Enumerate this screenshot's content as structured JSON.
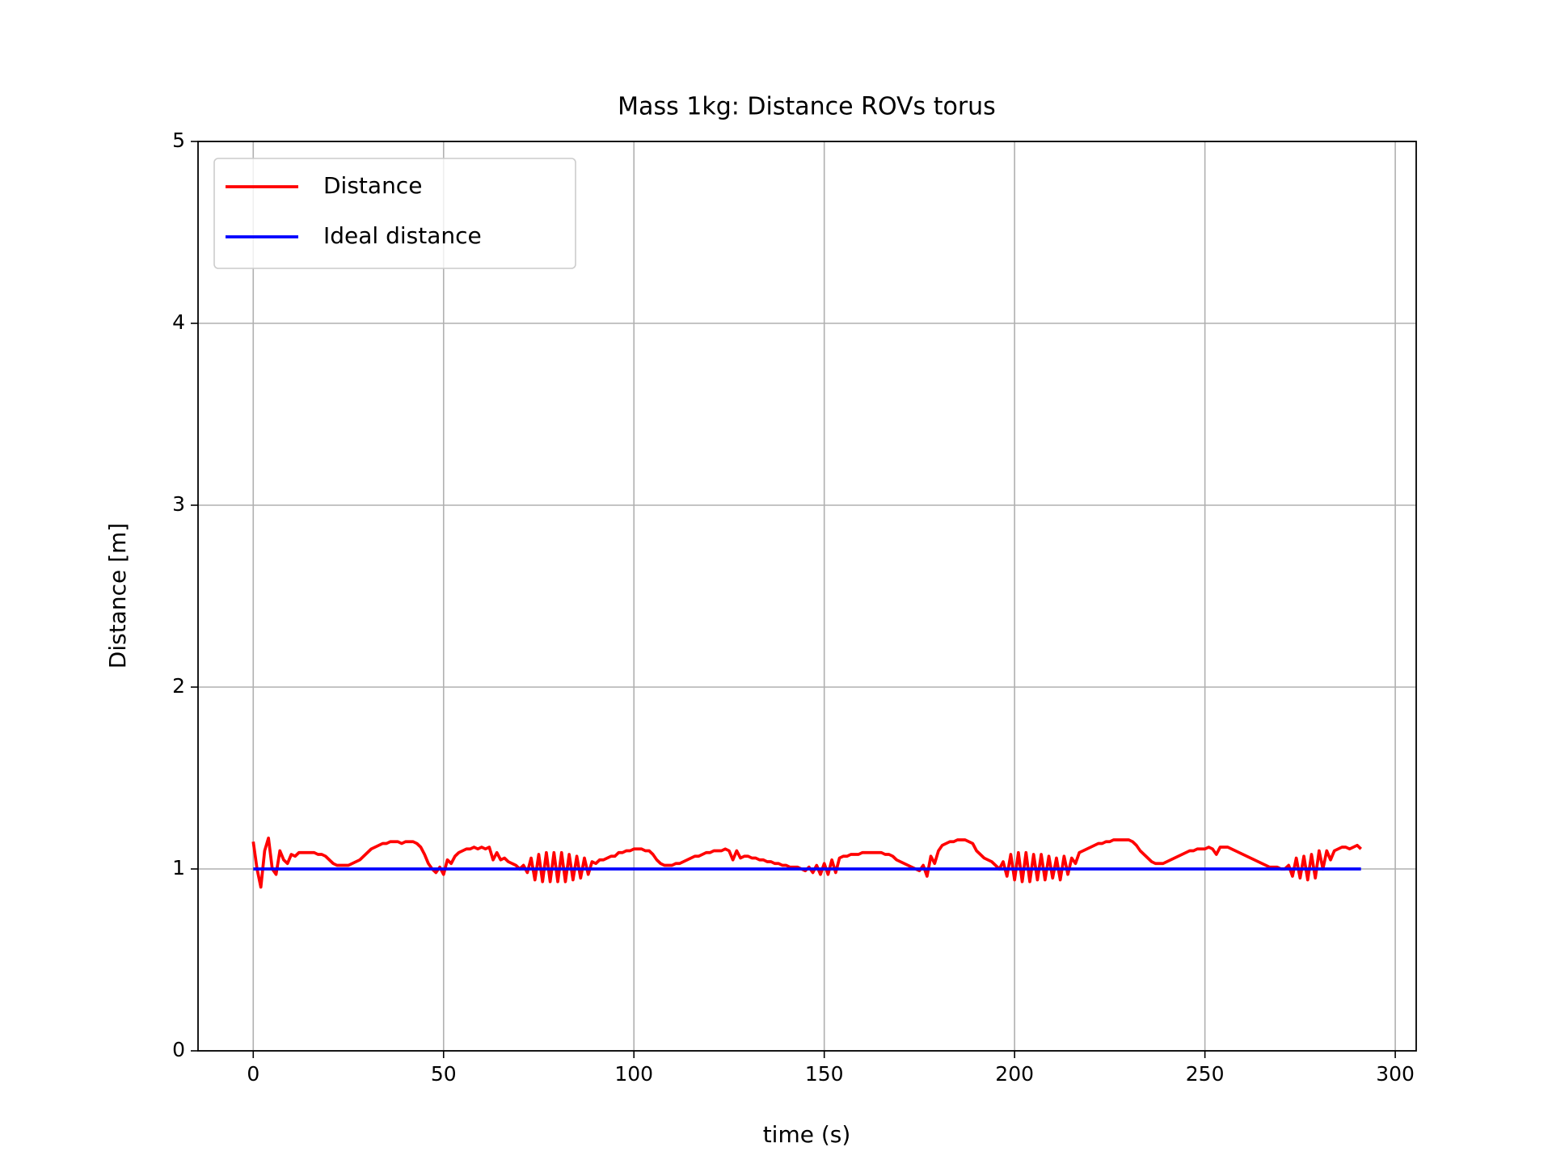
{
  "chart_data": {
    "type": "line",
    "title": "Mass 1kg: Distance ROVs torus",
    "xlabel": "time (s)",
    "ylabel": "Distance [m]",
    "xlim": [
      -14.5,
      305.5
    ],
    "ylim": [
      0,
      5
    ],
    "xticks": [
      0,
      50,
      100,
      150,
      200,
      250,
      300
    ],
    "yticks": [
      0,
      1,
      2,
      3,
      4,
      5
    ],
    "grid": true,
    "legend": "upper left",
    "series": [
      {
        "name": "Distance",
        "color": "#ff0000",
        "x": [
          0,
          1,
          2,
          3,
          4,
          5,
          6,
          7,
          8,
          9,
          10,
          11,
          12,
          13,
          14,
          15,
          16,
          17,
          18,
          19,
          20,
          21,
          22,
          23,
          24,
          25,
          26,
          27,
          28,
          29,
          30,
          31,
          32,
          33,
          34,
          35,
          36,
          37,
          38,
          39,
          40,
          41,
          42,
          43,
          44,
          45,
          46,
          47,
          48,
          49,
          50,
          51,
          52,
          53,
          54,
          55,
          56,
          57,
          58,
          59,
          60,
          61,
          62,
          63,
          64,
          65,
          66,
          67,
          68,
          69,
          70,
          71,
          72,
          73,
          74,
          75,
          76,
          77,
          78,
          79,
          80,
          81,
          82,
          83,
          84,
          85,
          86,
          87,
          88,
          89,
          90,
          91,
          92,
          93,
          94,
          95,
          96,
          97,
          98,
          99,
          100,
          101,
          102,
          103,
          104,
          105,
          106,
          107,
          108,
          109,
          110,
          111,
          112,
          113,
          114,
          115,
          116,
          117,
          118,
          119,
          120,
          121,
          122,
          123,
          124,
          125,
          126,
          127,
          128,
          129,
          130,
          131,
          132,
          133,
          134,
          135,
          136,
          137,
          138,
          139,
          140,
          141,
          142,
          143,
          144,
          145,
          146,
          147,
          148,
          149,
          150,
          151,
          152,
          153,
          154,
          155,
          156,
          157,
          158,
          159,
          160,
          161,
          162,
          163,
          164,
          165,
          166,
          167,
          168,
          169,
          170,
          171,
          172,
          173,
          174,
          175,
          176,
          177,
          178,
          179,
          180,
          181,
          182,
          183,
          184,
          185,
          186,
          187,
          188,
          189,
          190,
          191,
          192,
          193,
          194,
          195,
          196,
          197,
          198,
          199,
          200,
          201,
          202,
          203,
          204,
          205,
          206,
          207,
          208,
          209,
          210,
          211,
          212,
          213,
          214,
          215,
          216,
          217,
          218,
          219,
          220,
          221,
          222,
          223,
          224,
          225,
          226,
          227,
          228,
          229,
          230,
          231,
          232,
          233,
          234,
          235,
          236,
          237,
          238,
          239,
          240,
          241,
          242,
          243,
          244,
          245,
          246,
          247,
          248,
          249,
          250,
          251,
          252,
          253,
          254,
          255,
          256,
          257,
          258,
          259,
          260,
          261,
          262,
          263,
          264,
          265,
          266,
          267,
          268,
          269,
          270,
          271,
          272,
          273,
          274,
          275,
          276,
          277,
          278,
          279,
          280,
          281,
          282,
          283,
          284,
          285,
          286,
          287,
          288,
          289,
          290,
          291
        ],
        "values": [
          1.15,
          1.0,
          0.9,
          1.1,
          1.17,
          1.0,
          0.97,
          1.1,
          1.05,
          1.03,
          1.08,
          1.07,
          1.09,
          1.09,
          1.09,
          1.09,
          1.09,
          1.08,
          1.08,
          1.07,
          1.05,
          1.03,
          1.02,
          1.02,
          1.02,
          1.02,
          1.03,
          1.04,
          1.05,
          1.07,
          1.09,
          1.11,
          1.12,
          1.13,
          1.14,
          1.14,
          1.15,
          1.15,
          1.15,
          1.14,
          1.15,
          1.15,
          1.15,
          1.14,
          1.12,
          1.08,
          1.03,
          1.0,
          0.98,
          1.01,
          0.97,
          1.05,
          1.03,
          1.07,
          1.09,
          1.1,
          1.11,
          1.11,
          1.12,
          1.11,
          1.12,
          1.11,
          1.12,
          1.05,
          1.09,
          1.05,
          1.06,
          1.04,
          1.03,
          1.02,
          1.0,
          1.02,
          0.98,
          1.06,
          0.94,
          1.08,
          0.93,
          1.09,
          0.93,
          1.09,
          0.93,
          1.09,
          0.93,
          1.08,
          0.94,
          1.07,
          0.95,
          1.06,
          0.97,
          1.04,
          1.03,
          1.05,
          1.05,
          1.06,
          1.07,
          1.07,
          1.09,
          1.09,
          1.1,
          1.1,
          1.11,
          1.11,
          1.11,
          1.1,
          1.1,
          1.08,
          1.05,
          1.03,
          1.02,
          1.02,
          1.02,
          1.03,
          1.03,
          1.04,
          1.05,
          1.06,
          1.07,
          1.07,
          1.08,
          1.09,
          1.09,
          1.1,
          1.1,
          1.1,
          1.11,
          1.1,
          1.05,
          1.1,
          1.06,
          1.07,
          1.07,
          1.06,
          1.06,
          1.05,
          1.05,
          1.04,
          1.04,
          1.03,
          1.03,
          1.02,
          1.02,
          1.01,
          1.01,
          1.01,
          1.0,
          0.99,
          1.01,
          0.98,
          1.02,
          0.97,
          1.03,
          0.97,
          1.05,
          0.98,
          1.06,
          1.07,
          1.07,
          1.08,
          1.08,
          1.08,
          1.09,
          1.09,
          1.09,
          1.09,
          1.09,
          1.09,
          1.08,
          1.08,
          1.07,
          1.05,
          1.04,
          1.03,
          1.02,
          1.01,
          1.0,
          0.99,
          1.02,
          0.96,
          1.07,
          1.03,
          1.1,
          1.13,
          1.14,
          1.15,
          1.15,
          1.16,
          1.16,
          1.16,
          1.15,
          1.14,
          1.1,
          1.08,
          1.06,
          1.05,
          1.04,
          1.02,
          1.0,
          1.04,
          0.96,
          1.08,
          0.94,
          1.09,
          0.93,
          1.09,
          0.93,
          1.08,
          0.94,
          1.08,
          0.94,
          1.07,
          0.95,
          1.06,
          0.94,
          1.07,
          0.97,
          1.06,
          1.03,
          1.09,
          1.1,
          1.11,
          1.12,
          1.13,
          1.14,
          1.14,
          1.15,
          1.15,
          1.16,
          1.16,
          1.16,
          1.16,
          1.16,
          1.15,
          1.13,
          1.1,
          1.08,
          1.06,
          1.04,
          1.03,
          1.03,
          1.03,
          1.04,
          1.05,
          1.06,
          1.07,
          1.08,
          1.09,
          1.1,
          1.1,
          1.11,
          1.11,
          1.11,
          1.12,
          1.11,
          1.08,
          1.12,
          1.12,
          1.12,
          1.11,
          1.1,
          1.09,
          1.08,
          1.07,
          1.06,
          1.05,
          1.04,
          1.03,
          1.02,
          1.01,
          1.01,
          1.01,
          1.0,
          1.0,
          1.02,
          0.96,
          1.06,
          0.95,
          1.07,
          0.94,
          1.08,
          0.95,
          1.1,
          1.0,
          1.1,
          1.05,
          1.1,
          1.11,
          1.12,
          1.12,
          1.11,
          1.12,
          1.13,
          1.11
        ]
      },
      {
        "name": "Ideal distance",
        "color": "#0000ff",
        "x": [
          0,
          291
        ],
        "values": [
          1,
          1
        ]
      }
    ]
  }
}
